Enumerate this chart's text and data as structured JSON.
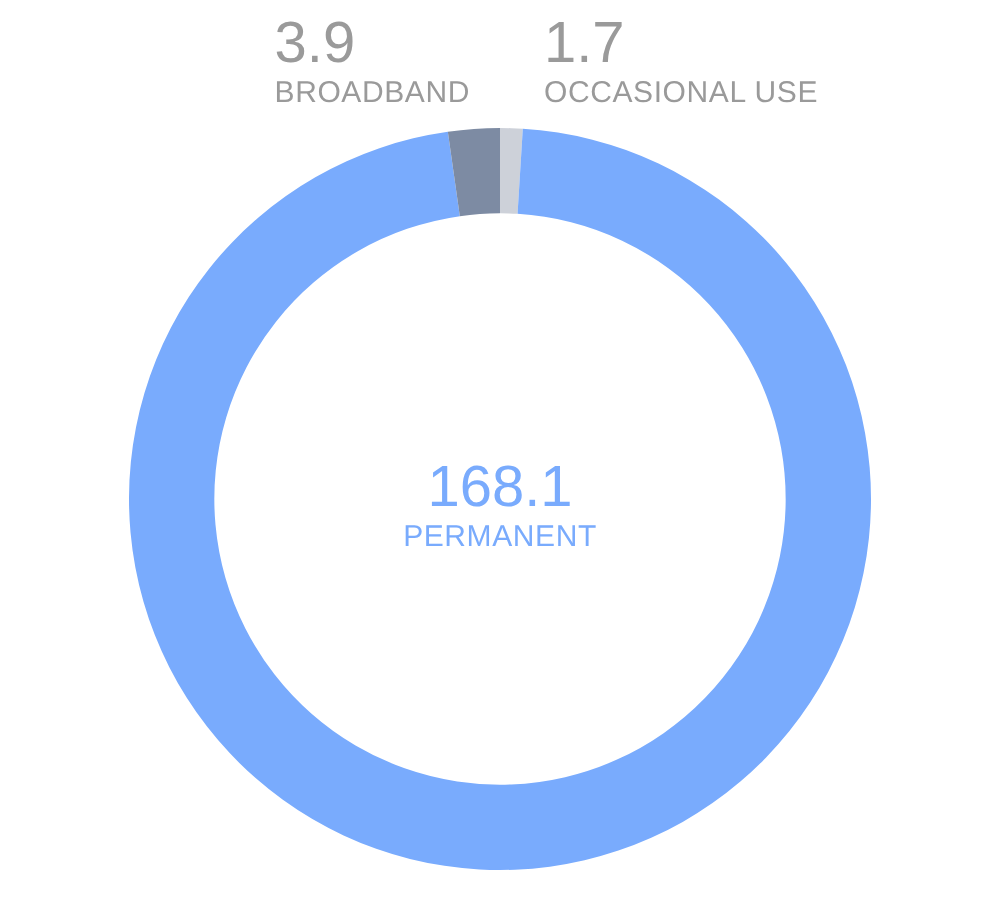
{
  "chart_data": {
    "type": "donut",
    "categories": [
      "OCCASIONAL USE",
      "PERMANENT",
      "BROADBAND"
    ],
    "values": [
      1.7,
      168.1,
      3.9
    ],
    "colors": [
      "#cdd1d9",
      "#79abfd",
      "#7d8ba3"
    ],
    "data_labels": true,
    "legend": false
  }
}
